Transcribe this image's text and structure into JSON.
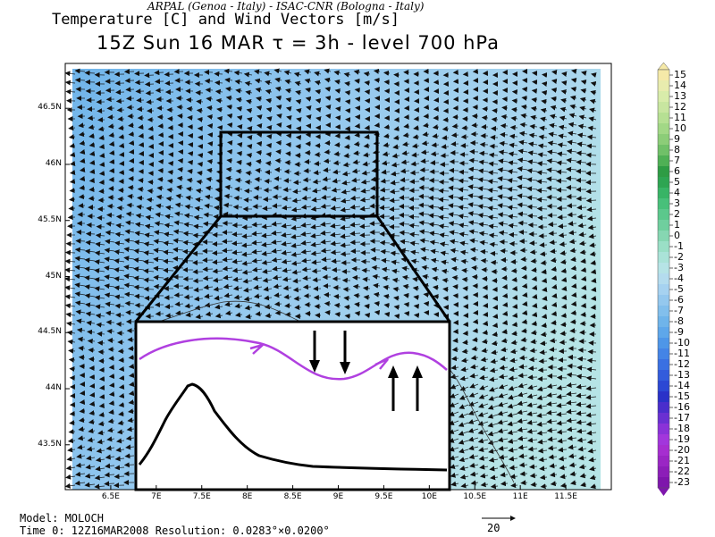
{
  "header": {
    "credits": "ARPAL (Genoa - Italy)  -  ISAC-CNR (Bologna - Italy)",
    "title": "Temperature [C] and Wind Vectors [m/s]",
    "subtitle": "15Z Sun 16 MAR  τ = 3h  -  level 700 hPa"
  },
  "map": {
    "lat_labels": [
      "46.5N",
      "46N",
      "45.5N",
      "45N",
      "44.5N",
      "44N",
      "43.5N"
    ],
    "lon_labels": [
      "6.5E",
      "7E",
      "7.5E",
      "8E",
      "8.5E",
      "9E",
      "9.5E",
      "10E",
      "10.5E",
      "11E",
      "11.5E"
    ],
    "lon_range": [
      6.0,
      12.0
    ],
    "lat_range": [
      43.1,
      46.9
    ],
    "inset": {
      "description_flow": "purple streamline",
      "colors": {
        "flow": "#b040e0",
        "terrain": "#000000",
        "arrows": "#000000"
      }
    }
  },
  "colorbar": {
    "values": [
      "15",
      "14",
      "13",
      "12",
      "11",
      "10",
      "9",
      "8",
      "7",
      "6",
      "5",
      "4",
      "3",
      "2",
      "1",
      "0",
      "-1",
      "-2",
      "-3",
      "-4",
      "-5",
      "-6",
      "-7",
      "-8",
      "-9",
      "-10",
      "-11",
      "-12",
      "-13",
      "-14",
      "-15",
      "-16",
      "-17",
      "-18",
      "-19",
      "-20",
      "-21",
      "-22",
      "-23"
    ],
    "colors": [
      "#f5e9a8",
      "#e8ecae",
      "#d8ecaa",
      "#c8e6a0",
      "#b6e093",
      "#a2d886",
      "#8ccd78",
      "#70c068",
      "#4fb055",
      "#2e9c44",
      "#2ea552",
      "#38b466",
      "#48c07a",
      "#5bc88c",
      "#6fcf9e",
      "#86d7b2",
      "#9adfc6",
      "#aae3d8",
      "#b6e4e6",
      "#b4dcee",
      "#a6d2f0",
      "#94c8ee",
      "#82bfec",
      "#6fb4ea",
      "#5ea7ea",
      "#4e96e8",
      "#4484e6",
      "#3a70e2",
      "#335cdc",
      "#2c48d4",
      "#2a32c8",
      "#4a2ecc",
      "#6a30d2",
      "#8a32d8",
      "#a236dc",
      "#a62ed0",
      "#9a26c4",
      "#8c1eb8",
      "#7e16ac"
    ]
  },
  "footer": {
    "model": "Model: MOLOCH",
    "time": "Time 0: 12Z16MAR2008    Resolution: 0.0283°×0.0200°",
    "ref_vector": "20"
  }
}
